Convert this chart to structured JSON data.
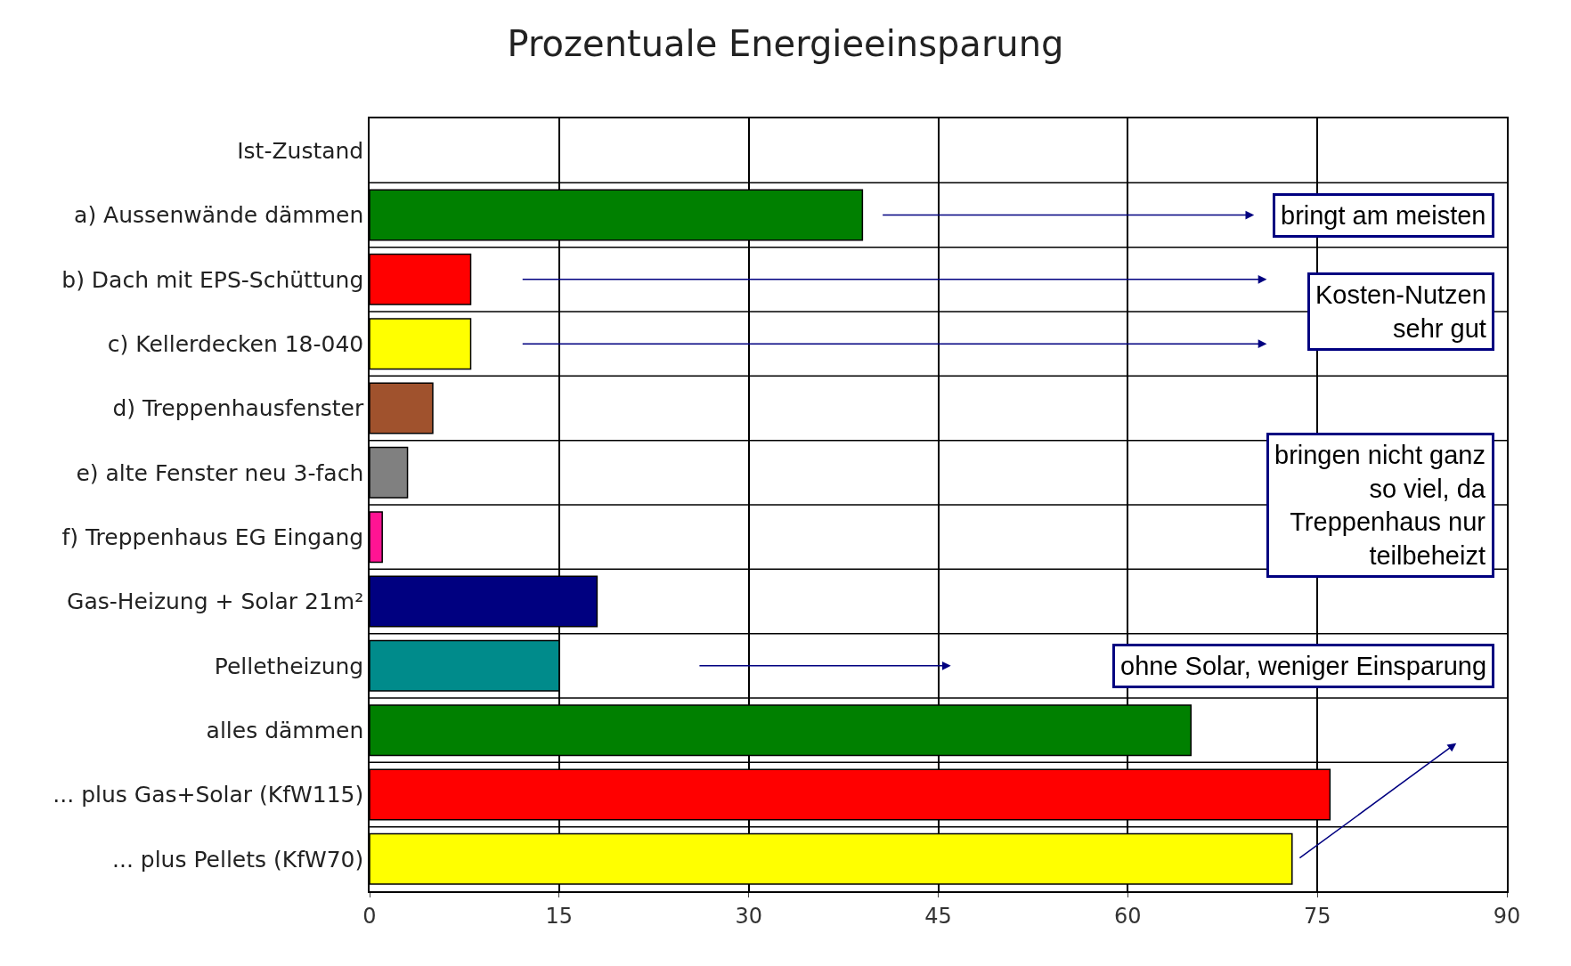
{
  "chart_data": {
    "type": "bar",
    "orientation": "horizontal",
    "title": "Prozentuale Energieeinsparung",
    "categories": [
      "Ist-Zustand",
      "a) Aussenwände dämmen",
      "b) Dach mit EPS-Schüttung",
      "c) Kellerdecken 18-040",
      "d) Treppenhausfenster",
      "e) alte Fenster neu 3-fach",
      "f) Treppenhaus EG Eingang",
      "Gas-Heizung + Solar 21m²",
      "Pelletheizung",
      "alles dämmen",
      "... plus Gas+Solar (KfW115)",
      "... plus Pellets (KfW70)"
    ],
    "values": [
      0,
      39,
      8,
      8,
      5,
      3,
      1,
      18,
      15,
      65,
      76,
      73
    ],
    "colors": [
      "#808080",
      "#008000",
      "#ff0000",
      "#ffff00",
      "#a0522d",
      "#808080",
      "#ff1493",
      "#000080",
      "#008b8b",
      "#008000",
      "#ff0000",
      "#ffff00"
    ],
    "xlim": [
      0,
      90
    ],
    "xticks": [
      0,
      15,
      30,
      45,
      60,
      75,
      90
    ],
    "grid": true,
    "annotations": [
      "bringt am meisten",
      "Kosten-Nutzen\nsehr gut",
      "bringen nicht ganz\nso viel, da\nTreppenhaus nur\nteilbeheizt",
      "ohne Solar, weniger Einsparung"
    ]
  }
}
